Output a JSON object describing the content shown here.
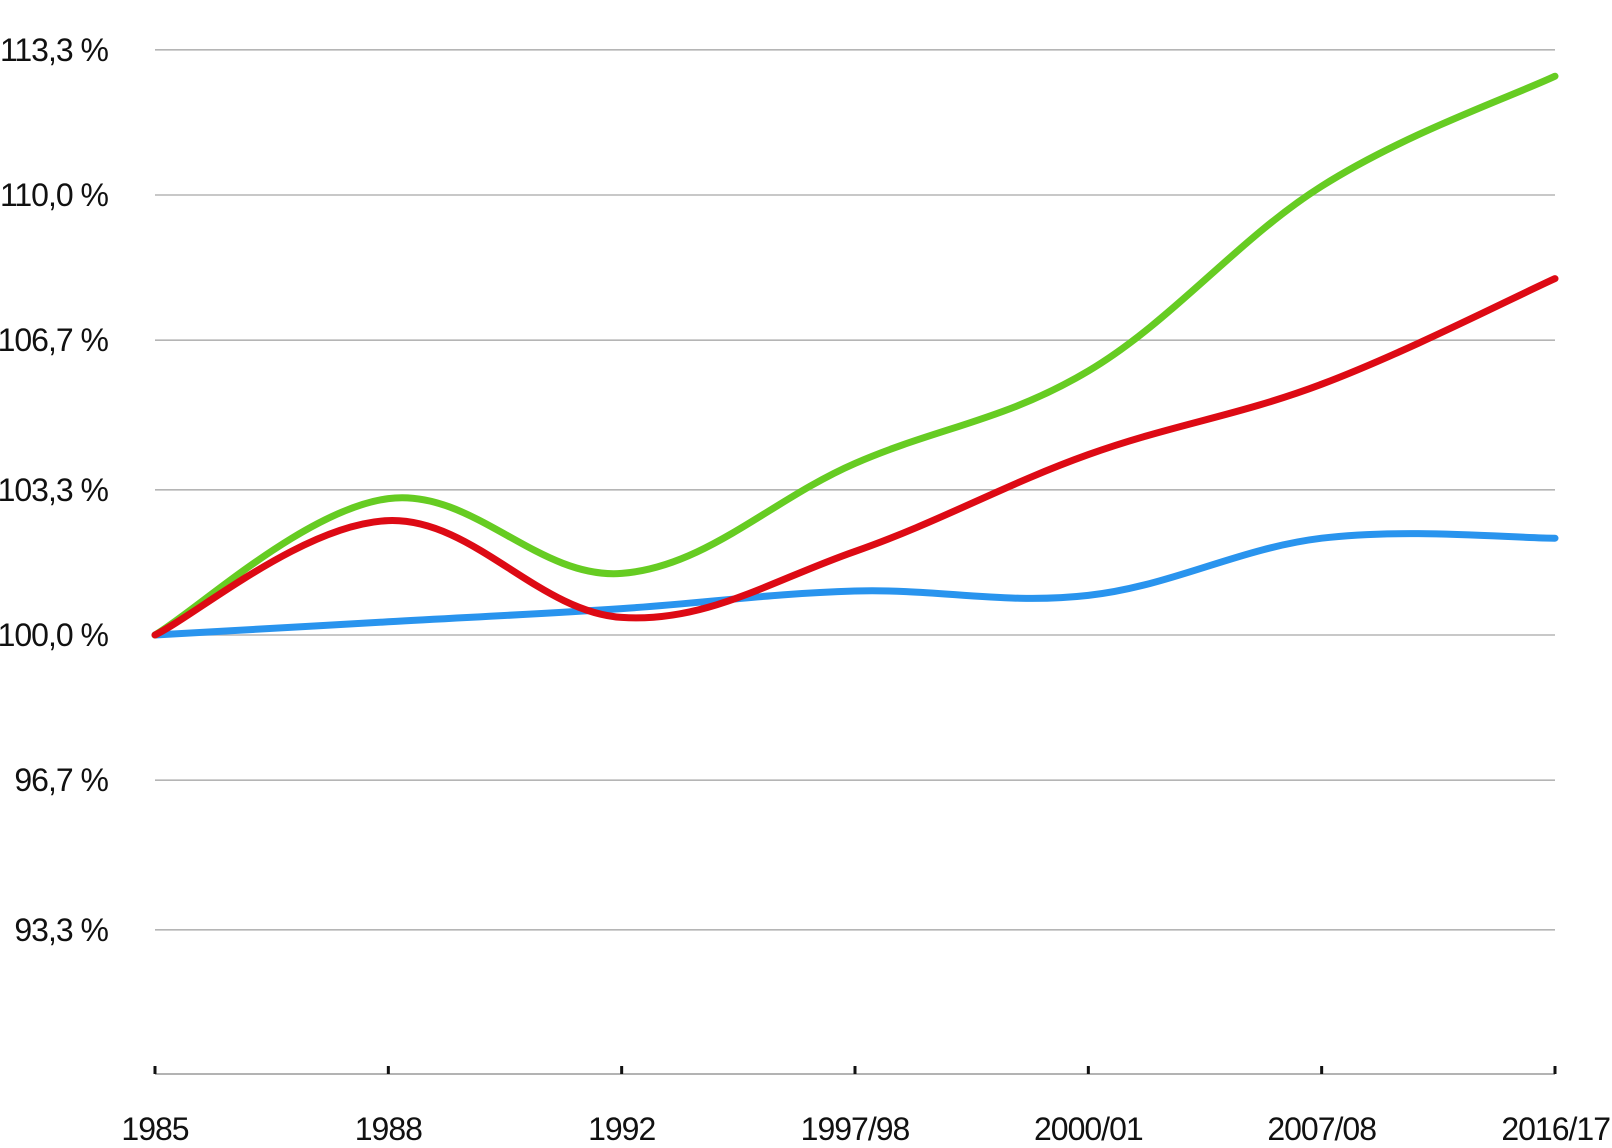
{
  "chart_data": {
    "type": "line",
    "title": "",
    "xlabel": "",
    "ylabel": "",
    "categories": [
      "1985",
      "1988",
      "1992",
      "1997/98",
      "2000/01",
      "2007/08",
      "2016/17"
    ],
    "y_ticks": [
      "93,3 %",
      "96,7 %",
      "100,0 %",
      "103,3 %",
      "106,7 %",
      "110,0 %",
      "113,3 %"
    ],
    "y_tick_values": [
      93.3,
      96.7,
      100.0,
      103.3,
      106.7,
      110.0,
      113.3
    ],
    "ylim": [
      90.0,
      113.3
    ],
    "grid": true,
    "series": [
      {
        "color": "#66cc22",
        "values": [
          100.0,
          103.1,
          101.4,
          103.9,
          106.0,
          110.2,
          112.7
        ]
      },
      {
        "color": "#dd0a14",
        "values": [
          100.0,
          102.6,
          100.4,
          101.9,
          104.1,
          105.7,
          108.1
        ]
      },
      {
        "color": "#2994ee",
        "values": [
          100.0,
          100.3,
          100.6,
          101.0,
          100.9,
          102.2,
          102.2
        ]
      }
    ]
  }
}
